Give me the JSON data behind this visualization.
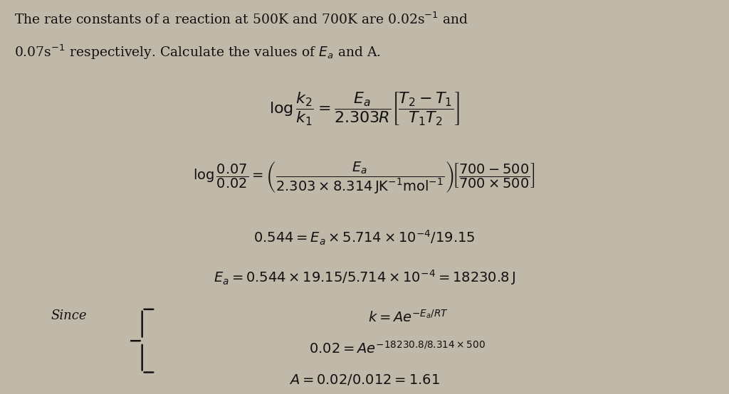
{
  "background_color": "#c0b8a8",
  "fig_width": 10.24,
  "fig_height": 5.54,
  "dpi": 100,
  "intro_text_line1": "The rate constants of a reaction at 500K and 700K are 0.02s$^{-1}$ and",
  "intro_text_line2": "0.07s$^{-1}$ respectively. Calculate the values of $E_a$ and A.",
  "eq1": "$\\log\\dfrac{k_2}{k_1} = \\dfrac{E_a}{2.303R}\\left[\\dfrac{T_2 - T_1}{T_1 T_2}\\right]$",
  "eq2": "$\\log\\dfrac{0.07}{0.02} = \\left(\\dfrac{E_a}{2.303\\times8.314\\,\\mathrm{JK^{-1}mol^{-1}}}\\right)\\!\\left[\\dfrac{700-500}{700\\times500}\\right]$",
  "eq3": "$0.544 = E_a \\times 5.714 \\times 10^{-4}/19.15$",
  "eq4": "$E_a = 0.544 \\times 19.15/5.714 \\times 10^{-4} = 18230.8\\,\\mathrm{J}$",
  "since_label": "Since",
  "eq5": "$k = Ae^{-E_a/RT}$",
  "eq6": "$0.02 = Ae^{-18230.8/8.314\\times500}$",
  "eq7": "$A = 0.02/0.012 = 1.61$",
  "text_color": "#111111",
  "intro_fontsize": 13.5,
  "eq_fontsize": 14,
  "since_fontsize": 13
}
